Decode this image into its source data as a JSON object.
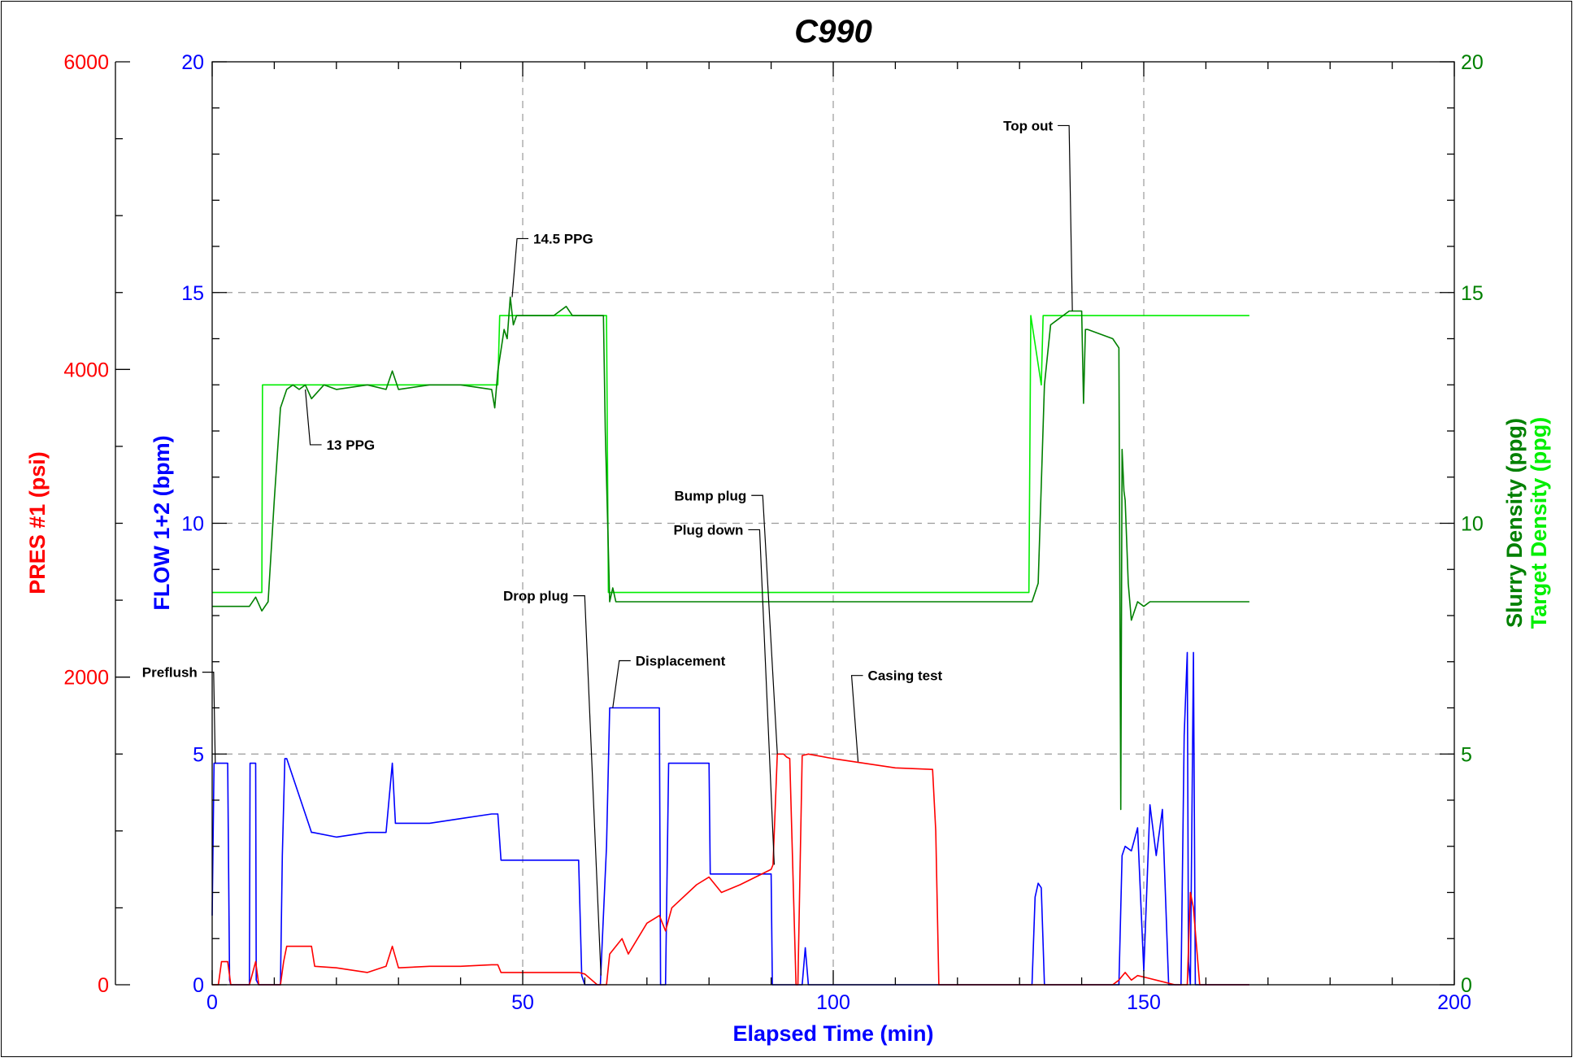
{
  "chart_data": {
    "type": "line",
    "title": "C990",
    "xlabel": "Elapsed Time (min)",
    "xlim": [
      0,
      200
    ],
    "x_ticks": [
      "0",
      "50",
      "100",
      "150",
      "200"
    ],
    "axes": {
      "pressure": {
        "label": "PRES #1 (psi)",
        "ylim": [
          0,
          6000
        ],
        "ticks": [
          "0",
          "2000",
          "4000",
          "6000"
        ],
        "color": "#ff0000"
      },
      "flow": {
        "label": "FLOW 1+2 (bpm)",
        "ylim": [
          0,
          20
        ],
        "ticks": [
          "0",
          "5",
          "10",
          "15",
          "20"
        ],
        "color": "#0000ff"
      },
      "density": {
        "label_slurry": "Slurry Density (ppg)",
        "label_target": "Target Density (ppg)",
        "ylim": [
          0,
          20
        ],
        "ticks": [
          "0",
          "5",
          "10",
          "15",
          "20"
        ],
        "color_slurry": "#008000",
        "color_target": "#00ee00"
      }
    },
    "grid": "dashed at x=50,100,150 and y=5,10,15 (flow scale)",
    "series": [
      {
        "name": "Target Density (ppg)",
        "axis": "density",
        "color": "#00ee00",
        "x": [
          0,
          8,
          8.1,
          46,
          46.3,
          63.5,
          63.8,
          131.5,
          131.8,
          133.5,
          133.8,
          167
        ],
        "y": [
          8.5,
          8.5,
          13,
          13,
          14.5,
          14.5,
          8.5,
          8.5,
          14.5,
          13,
          14.5,
          14.5
        ]
      },
      {
        "name": "Slurry Density (ppg)",
        "axis": "density",
        "color": "#008000",
        "x": [
          0,
          6,
          7,
          8,
          9,
          10,
          11,
          12,
          13,
          14,
          15,
          16,
          18,
          20,
          25,
          28,
          29,
          30,
          35,
          40,
          45,
          45.5,
          46,
          47,
          47.5,
          48,
          48.5,
          49,
          50,
          55,
          57,
          58,
          60,
          62,
          63,
          63.3,
          64,
          64.5,
          65,
          70,
          80,
          100,
          120,
          130,
          131.5,
          132,
          133,
          134,
          135,
          136,
          137,
          138,
          139,
          140,
          140.3,
          140.6,
          141,
          145,
          146,
          146.3,
          146.5,
          146.8,
          147,
          147.5,
          148,
          149,
          150,
          151,
          152,
          155,
          160,
          167
        ],
        "y": [
          8.2,
          8.2,
          8.4,
          8.1,
          8.3,
          10.5,
          12.5,
          12.9,
          13,
          12.9,
          13,
          12.7,
          13,
          12.9,
          13,
          12.9,
          13.3,
          12.9,
          13,
          13,
          12.9,
          12.5,
          13.3,
          14.2,
          14,
          14.9,
          14.3,
          14.5,
          14.5,
          14.5,
          14.7,
          14.5,
          14.5,
          14.5,
          14.5,
          12,
          8.3,
          8.6,
          8.3,
          8.3,
          8.3,
          8.3,
          8.3,
          8.3,
          8.3,
          8.3,
          8.7,
          13,
          14.3,
          14.4,
          14.5,
          14.6,
          14.6,
          14.6,
          12.6,
          14.2,
          14.2,
          14.0,
          13.8,
          3.8,
          11.6,
          10.7,
          10.5,
          8.7,
          7.9,
          8.3,
          8.2,
          8.3,
          8.3,
          8.3,
          8.3,
          8.3
        ]
      },
      {
        "name": "FLOW 1+2 (bpm)",
        "axis": "flow",
        "color": "#0000ff",
        "x": [
          0,
          0.3,
          0.8,
          1,
          2.5,
          2.8,
          3,
          6,
          6.1,
          7,
          7.1,
          7.5,
          8,
          11,
          11.3,
          11.7,
          12,
          16,
          16.2,
          20,
          25,
          28,
          29,
          29.5,
          30,
          35,
          40,
          45,
          46,
          46.5,
          48,
          48.5,
          50,
          55,
          59,
          59.5,
          60,
          62,
          62.5,
          63.5,
          64,
          64.5,
          72,
          72.2,
          73,
          73.5,
          74,
          80,
          80.2,
          90,
          90.2,
          90.5,
          91,
          95,
          95.5,
          96,
          130,
          132,
          132.5,
          133,
          133.5,
          134,
          140,
          145,
          146,
          146.5,
          147,
          148,
          149,
          150,
          151,
          152,
          153,
          154,
          155,
          156,
          156.5,
          157,
          157.2,
          157.5,
          158,
          158.3,
          158.6,
          159,
          159.5,
          167
        ],
        "y": [
          1.5,
          4.8,
          4.8,
          4.8,
          4.8,
          0.1,
          0,
          0,
          4.8,
          4.8,
          0.1,
          0,
          0,
          0,
          2.8,
          4.9,
          4.9,
          3.3,
          3.3,
          3.2,
          3.3,
          3.3,
          4.8,
          3.5,
          3.5,
          3.5,
          3.6,
          3.7,
          3.7,
          2.7,
          2.7,
          2.7,
          2.7,
          2.7,
          2.7,
          0.2,
          0,
          0,
          0,
          3,
          6.0,
          6.0,
          6.0,
          0,
          0,
          4.8,
          4.8,
          4.8,
          2.4,
          2.4,
          0,
          0,
          0,
          0,
          0.8,
          0,
          0,
          0,
          1.9,
          2.2,
          2.1,
          0,
          0,
          0,
          0,
          2.8,
          3.0,
          2.9,
          3.4,
          0.3,
          3.9,
          2.8,
          3.8,
          0,
          0,
          0,
          5.4,
          7.2,
          0.5,
          0,
          7.2,
          0,
          0,
          0,
          0,
          0
        ]
      },
      {
        "name": "PRES #1 (psi)",
        "axis": "pressure",
        "color": "#ff0000",
        "x": [
          0,
          1,
          1.5,
          2.5,
          3,
          6,
          7,
          7.5,
          8,
          11,
          11.5,
          12,
          16,
          16.5,
          20,
          25,
          28,
          29,
          30,
          35,
          40,
          45,
          46,
          46.5,
          48,
          55,
          59,
          60,
          62,
          63,
          63.5,
          64,
          65,
          66,
          67,
          70,
          72,
          73,
          74,
          78,
          80,
          82,
          85,
          90,
          90.3,
          91,
          92,
          92.5,
          93,
          94,
          94.3,
          95,
          96,
          100,
          110,
          116,
          116.5,
          117,
          120,
          130,
          145,
          146,
          147,
          148,
          149,
          150,
          151,
          152,
          155,
          156,
          157,
          157.5,
          158,
          158.5,
          159,
          160,
          167
        ],
        "y": [
          0,
          0,
          150,
          150,
          0,
          0,
          150,
          0,
          0,
          0,
          150,
          250,
          250,
          120,
          110,
          80,
          120,
          250,
          110,
          120,
          120,
          130,
          130,
          80,
          80,
          80,
          80,
          70,
          0,
          0,
          0,
          200,
          250,
          300,
          200,
          400,
          450,
          350,
          500,
          650,
          700,
          600,
          650,
          750,
          780,
          1500,
          1500,
          1480,
          1470,
          0,
          0,
          1490,
          1500,
          1470,
          1410,
          1400,
          1000,
          0,
          0,
          0,
          0,
          30,
          80,
          30,
          60,
          50,
          40,
          30,
          0,
          0,
          0,
          600,
          500,
          250,
          0,
          0,
          0
        ]
      }
    ],
    "annotations": [
      {
        "text": "Preflush",
        "x": 0.5,
        "axis": "flow",
        "y": 4.8
      },
      {
        "text": "13 PPG",
        "x": 15,
        "axis": "density",
        "y": 12.9
      },
      {
        "text": "14.5 PPG",
        "x": 48.3,
        "axis": "density",
        "y": 14.9
      },
      {
        "text": "Drop plug",
        "x": 62.6,
        "axis": "flow",
        "y": 0.2
      },
      {
        "text": "Displacement",
        "x": 64.5,
        "axis": "flow",
        "y": 6.0
      },
      {
        "text": "Plug down",
        "x": 90.5,
        "axis": "pressure",
        "y": 780
      },
      {
        "text": "Bump plug",
        "x": 91,
        "axis": "pressure",
        "y": 1500
      },
      {
        "text": "Casing test",
        "x": 104,
        "axis": "pressure",
        "y": 1450
      },
      {
        "text": "Top out",
        "x": 138.5,
        "axis": "density",
        "y": 14.6
      }
    ]
  }
}
